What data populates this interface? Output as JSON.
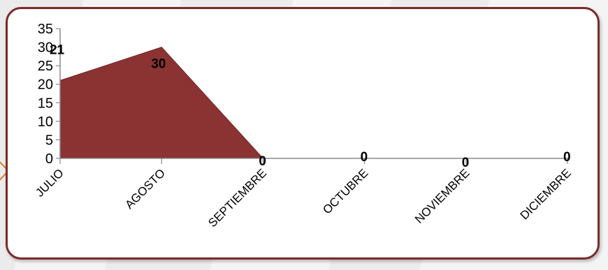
{
  "colors": {
    "area_fill": "#8b3333",
    "area_stroke": "#6e2424",
    "frame_border": "#7a2a2a",
    "axis": "#8a8a8a",
    "arrow": "#e07b2a"
  },
  "chart_data": {
    "type": "area",
    "title": "",
    "xlabel": "",
    "ylabel": "",
    "categories": [
      "JULIO",
      "AGOSTO",
      "SEPTIEMBRE",
      "OCTUBRE",
      "NOVIEMBRE",
      "DICIEMBRE"
    ],
    "series": [
      {
        "values": [
          21,
          30,
          0,
          0,
          0,
          0
        ]
      }
    ],
    "data_labels": [
      "21",
      "30",
      "0",
      "0",
      "0",
      "0"
    ],
    "ylim": [
      0,
      35
    ],
    "yticks": [
      0,
      5,
      10,
      15,
      20,
      25,
      30,
      35
    ],
    "ytick_labels": [
      "0",
      "5",
      "10",
      "15",
      "20",
      "25",
      "30",
      "35"
    ],
    "grid": false,
    "legend": "none"
  }
}
